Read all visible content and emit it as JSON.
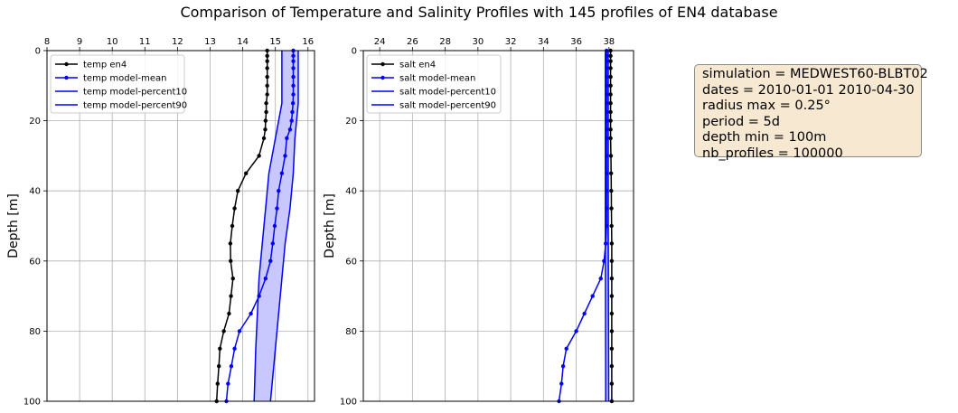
{
  "figure": {
    "title": "Comparison of Temperature and Salinity Profiles with 145 profiles of EN4 database",
    "info_box": [
      "simulation = MEDWEST60-BLBT02",
      "dates = 2010-01-01 2010-04-30",
      "radius max = 0.25°",
      "period = 5d",
      "depth min = 100m",
      "nb_profiles = 100000"
    ]
  },
  "chart_data": [
    {
      "type": "line",
      "title": "",
      "xlabel": "",
      "ylabel": "Depth [m]",
      "xlim": [
        8,
        16.2
      ],
      "ylim": [
        100,
        0
      ],
      "y_inverted": true,
      "x_axis_position": "top",
      "x_ticks": [
        8,
        9,
        10,
        11,
        12,
        13,
        14,
        15,
        16
      ],
      "y_ticks": [
        0,
        20,
        40,
        60,
        80,
        100
      ],
      "grid": true,
      "legend": "upper-left",
      "fill_between_percentiles": true,
      "colors": {
        "en4": "#000000",
        "model": "#0000ff",
        "fill": "#c8c8ff"
      },
      "series": [
        {
          "name": "temp en4",
          "marker": true,
          "points": [
            [
              14.75,
              0
            ],
            [
              14.75,
              1.5
            ],
            [
              14.75,
              3
            ],
            [
              14.75,
              5
            ],
            [
              14.75,
              7.5
            ],
            [
              14.75,
              10
            ],
            [
              14.75,
              12.5
            ],
            [
              14.72,
              15
            ],
            [
              14.72,
              17.5
            ],
            [
              14.7,
              20
            ],
            [
              14.69,
              22.5
            ],
            [
              14.65,
              25
            ],
            [
              14.5,
              30
            ],
            [
              14.1,
              35
            ],
            [
              13.85,
              40
            ],
            [
              13.75,
              45
            ],
            [
              13.68,
              50
            ],
            [
              13.62,
              55
            ],
            [
              13.63,
              60
            ],
            [
              13.7,
              65
            ],
            [
              13.64,
              70
            ],
            [
              13.58,
              75
            ],
            [
              13.42,
              80
            ],
            [
              13.3,
              85
            ],
            [
              13.27,
              90
            ],
            [
              13.23,
              95
            ],
            [
              13.2,
              100
            ]
          ]
        },
        {
          "name": "temp model-mean",
          "marker": true,
          "points": [
            [
              15.55,
              0
            ],
            [
              15.55,
              1.5
            ],
            [
              15.55,
              3
            ],
            [
              15.55,
              5
            ],
            [
              15.55,
              7.5
            ],
            [
              15.55,
              10
            ],
            [
              15.55,
              12.5
            ],
            [
              15.54,
              15
            ],
            [
              15.52,
              17.5
            ],
            [
              15.5,
              20
            ],
            [
              15.45,
              22.5
            ],
            [
              15.35,
              25
            ],
            [
              15.3,
              30
            ],
            [
              15.2,
              35
            ],
            [
              15.1,
              40
            ],
            [
              15.05,
              45
            ],
            [
              14.98,
              50
            ],
            [
              14.92,
              55
            ],
            [
              14.85,
              60
            ],
            [
              14.7,
              65
            ],
            [
              14.5,
              70
            ],
            [
              14.25,
              75
            ],
            [
              13.9,
              80
            ],
            [
              13.75,
              85
            ],
            [
              13.65,
              90
            ],
            [
              13.55,
              95
            ],
            [
              13.5,
              100
            ]
          ]
        },
        {
          "name": "temp model-percent10",
          "marker": false,
          "points": [
            [
              15.2,
              0
            ],
            [
              15.2,
              15
            ],
            [
              15.0,
              25
            ],
            [
              14.8,
              35
            ],
            [
              14.7,
              45
            ],
            [
              14.6,
              55
            ],
            [
              14.5,
              65
            ],
            [
              14.45,
              75
            ],
            [
              14.4,
              85
            ],
            [
              14.35,
              100
            ]
          ]
        },
        {
          "name": "temp model-percent90",
          "marker": false,
          "points": [
            [
              15.7,
              0
            ],
            [
              15.7,
              15
            ],
            [
              15.6,
              25
            ],
            [
              15.55,
              35
            ],
            [
              15.45,
              45
            ],
            [
              15.3,
              55
            ],
            [
              15.2,
              65
            ],
            [
              15.1,
              75
            ],
            [
              15.0,
              85
            ],
            [
              14.85,
              100
            ]
          ]
        }
      ]
    },
    {
      "type": "line",
      "title": "",
      "xlabel": "",
      "ylabel": "Depth [m]",
      "xlim": [
        23,
        39.5
      ],
      "ylim": [
        100,
        0
      ],
      "y_inverted": true,
      "x_axis_position": "top",
      "x_ticks": [
        24,
        26,
        28,
        30,
        32,
        34,
        36,
        38
      ],
      "y_ticks": [
        0,
        20,
        40,
        60,
        80,
        100
      ],
      "grid": true,
      "legend": "upper-left",
      "fill_between_percentiles": true,
      "colors": {
        "en4": "#000000",
        "model": "#0000ff",
        "fill": "#c8c8ff"
      },
      "series": [
        {
          "name": "salt en4",
          "marker": true,
          "points": [
            [
              38.1,
              0
            ],
            [
              38.1,
              1.5
            ],
            [
              38.1,
              3
            ],
            [
              38.1,
              5
            ],
            [
              38.1,
              7.5
            ],
            [
              38.1,
              10
            ],
            [
              38.1,
              12.5
            ],
            [
              38.1,
              15
            ],
            [
              38.1,
              17.5
            ],
            [
              38.1,
              20
            ],
            [
              38.1,
              22.5
            ],
            [
              38.1,
              25
            ],
            [
              38.12,
              30
            ],
            [
              38.13,
              35
            ],
            [
              38.14,
              40
            ],
            [
              38.15,
              45
            ],
            [
              38.16,
              50
            ],
            [
              38.17,
              55
            ],
            [
              38.17,
              60
            ],
            [
              38.17,
              65
            ],
            [
              38.17,
              70
            ],
            [
              38.17,
              75
            ],
            [
              38.17,
              80
            ],
            [
              38.17,
              85
            ],
            [
              38.17,
              90
            ],
            [
              38.17,
              95
            ],
            [
              38.17,
              100
            ]
          ]
        },
        {
          "name": "salt model-mean",
          "marker": true,
          "points": [
            [
              37.85,
              0
            ],
            [
              37.85,
              1.5
            ],
            [
              37.85,
              3
            ],
            [
              37.85,
              5
            ],
            [
              37.85,
              7.5
            ],
            [
              37.85,
              10
            ],
            [
              37.85,
              12.5
            ],
            [
              37.85,
              15
            ],
            [
              37.85,
              17.5
            ],
            [
              37.85,
              20
            ],
            [
              37.85,
              22.5
            ],
            [
              37.85,
              25
            ],
            [
              37.85,
              30
            ],
            [
              37.85,
              35
            ],
            [
              37.85,
              40
            ],
            [
              37.85,
              45
            ],
            [
              37.85,
              50
            ],
            [
              37.8,
              55
            ],
            [
              37.7,
              60
            ],
            [
              37.5,
              65
            ],
            [
              37.0,
              70
            ],
            [
              36.5,
              75
            ],
            [
              36.0,
              80
            ],
            [
              35.4,
              85
            ],
            [
              35.2,
              90
            ],
            [
              35.1,
              95
            ],
            [
              34.95,
              100
            ]
          ]
        },
        {
          "name": "salt model-percent10",
          "marker": false,
          "points": [
            [
              37.78,
              0
            ],
            [
              37.78,
              50
            ],
            [
              37.8,
              100
            ]
          ]
        },
        {
          "name": "salt model-percent90",
          "marker": false,
          "points": [
            [
              37.95,
              0
            ],
            [
              37.95,
              50
            ],
            [
              37.98,
              100
            ]
          ]
        }
      ]
    }
  ]
}
